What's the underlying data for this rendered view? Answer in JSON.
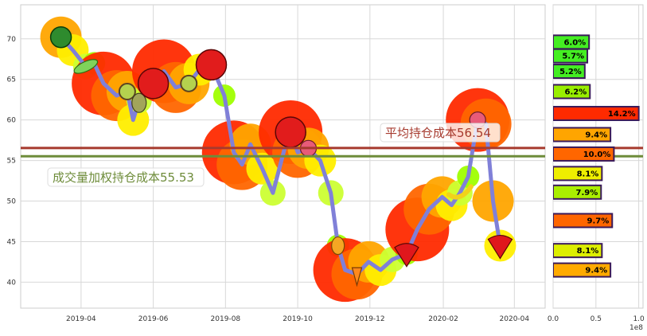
{
  "chart_data": [
    {
      "type": "line",
      "x_ticks": [
        "2019-04",
        "2019-06",
        "2019-08",
        "2019-10",
        "2019-12",
        "2020-02",
        "2020-04"
      ],
      "y_ticks": [
        40,
        45,
        50,
        55,
        60,
        65,
        70
      ],
      "xlim": [
        "2019-02-09",
        "2020-04-27"
      ],
      "ylim": [
        36.8,
        74.2
      ],
      "grid": true,
      "series": [
        {
          "color": "#8080d8",
          "points": [
            [
              "2019-03-15",
              70.2
            ],
            [
              "2019-03-25",
              68.6
            ],
            [
              "2019-04-05",
              66.6
            ],
            [
              "2019-04-12",
              67.0
            ],
            [
              "2019-04-20",
              64.5
            ],
            [
              "2019-05-01",
              63.0
            ],
            [
              "2019-05-10",
              63.5
            ],
            [
              "2019-05-15",
              60.0
            ],
            [
              "2019-05-20",
              62.4
            ],
            [
              "2019-06-01",
              64.5
            ],
            [
              "2019-06-10",
              66.0
            ],
            [
              "2019-06-20",
              64.0
            ],
            [
              "2019-07-01",
              64.5
            ],
            [
              "2019-07-10",
              66.2
            ],
            [
              "2019-07-20",
              66.8
            ],
            [
              "2019-07-31",
              63.0
            ],
            [
              "2019-08-08",
              56.0
            ],
            [
              "2019-08-15",
              54.5
            ],
            [
              "2019-08-22",
              57.0
            ],
            [
              "2019-09-01",
              54.0
            ],
            [
              "2019-09-10",
              51.0
            ],
            [
              "2019-09-20",
              56.5
            ],
            [
              "2019-09-25",
              58.5
            ],
            [
              "2019-10-01",
              56.0
            ],
            [
              "2019-10-10",
              56.5
            ],
            [
              "2019-10-20",
              55.0
            ],
            [
              "2019-10-29",
              51.0
            ],
            [
              "2019-11-04",
              44.5
            ],
            [
              "2019-11-10",
              41.5
            ],
            [
              "2019-11-20",
              41.0
            ],
            [
              "2019-11-30",
              42.5
            ],
            [
              "2019-12-10",
              41.5
            ],
            [
              "2019-12-20",
              42.8
            ],
            [
              "2020-01-01",
              43.5
            ],
            [
              "2020-01-10",
              46.5
            ],
            [
              "2020-01-20",
              49.0
            ],
            [
              "2020-01-31",
              50.5
            ],
            [
              "2020-02-08",
              49.5
            ],
            [
              "2020-02-15",
              51.0
            ],
            [
              "2020-02-22",
              53.0
            ],
            [
              "2020-03-01",
              60.0
            ],
            [
              "2020-03-08",
              59.5
            ],
            [
              "2020-03-14",
              50.0
            ],
            [
              "2020-03-20",
              44.5
            ]
          ]
        }
      ],
      "hlines": [
        {
          "y": 56.54,
          "color": "#a63a2e",
          "label": "平均持仓成本56.54"
        },
        {
          "y": 55.53,
          "color": "#6e8c3a",
          "label": "成交量加权持仓成本55.53"
        }
      ],
      "marker_colors": [
        "#9fff00",
        "#ff2a00",
        "#ff6600",
        "#ffa500",
        "#ffee00",
        "#ccff33"
      ],
      "icons": [
        "watermelon-icon",
        "pea-pod-icon",
        "kiwi-icon",
        "pear-icon",
        "apple-icon",
        "strawberry-icon",
        "radish-icon",
        "pineapple-icon",
        "carrot-icon",
        "banana-icon"
      ]
    },
    {
      "type": "bar",
      "orientation": "horizontal",
      "x_ticks": [
        "0.0",
        "0.5",
        "1.0"
      ],
      "x_offset_label": "1e8",
      "xlim": [
        0,
        1.05
      ],
      "bars": [
        {
          "price": 69.6,
          "value": 0.42,
          "label": "6.0%",
          "color": "#44ee22"
        },
        {
          "price": 67.9,
          "value": 0.4,
          "label": "5.7%",
          "color": "#44ee22"
        },
        {
          "price": 66.0,
          "value": 0.37,
          "label": "5.2%",
          "color": "#44ee22"
        },
        {
          "price": 63.5,
          "value": 0.43,
          "label": "6.2%",
          "color": "#99ee00"
        },
        {
          "price": 60.8,
          "value": 1.0,
          "label": "14.2%",
          "color": "#ff2a00"
        },
        {
          "price": 58.2,
          "value": 0.67,
          "label": "9.4%",
          "color": "#ffa500"
        },
        {
          "price": 55.8,
          "value": 0.71,
          "label": "10.0%",
          "color": "#ff6600"
        },
        {
          "price": 53.4,
          "value": 0.57,
          "label": "8.1%",
          "color": "#eeee00"
        },
        {
          "price": 51.1,
          "value": 0.56,
          "label": "7.9%",
          "color": "#aaee00"
        },
        {
          "price": 47.6,
          "value": 0.69,
          "label": "9.7%",
          "color": "#ff6600"
        },
        {
          "price": 43.9,
          "value": 0.57,
          "label": "8.1%",
          "color": "#ddee00"
        },
        {
          "price": 41.5,
          "value": 0.67,
          "label": "9.4%",
          "color": "#ffaa00"
        }
      ]
    }
  ]
}
